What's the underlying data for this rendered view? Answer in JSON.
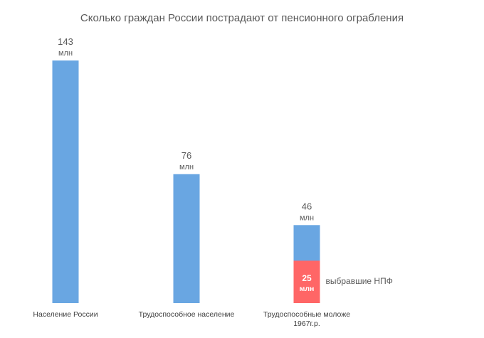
{
  "chart_data": {
    "type": "bar",
    "title": "Сколько граждан России пострадают от пенсионного ограбления",
    "categories": [
      [
        "Население России"
      ],
      [
        "Трудоспособное население"
      ],
      [
        "Трудоспособные моложе",
        "1967г.р."
      ]
    ],
    "values": [
      143,
      76,
      46
    ],
    "value_labels": [
      "143",
      "76",
      "46"
    ],
    "unit_label": "млн",
    "segment": {
      "category_index": 2,
      "value": 25,
      "value_label": "25",
      "unit_label": "млн",
      "annotation": "выбравшие НПФ",
      "color": "#ff6666"
    },
    "bar_color": "#69a6e2",
    "segment_text_color": "#ffffff",
    "label_color": "#595959",
    "ylim": [
      0,
      143
    ],
    "grid": false,
    "legend": "none"
  }
}
